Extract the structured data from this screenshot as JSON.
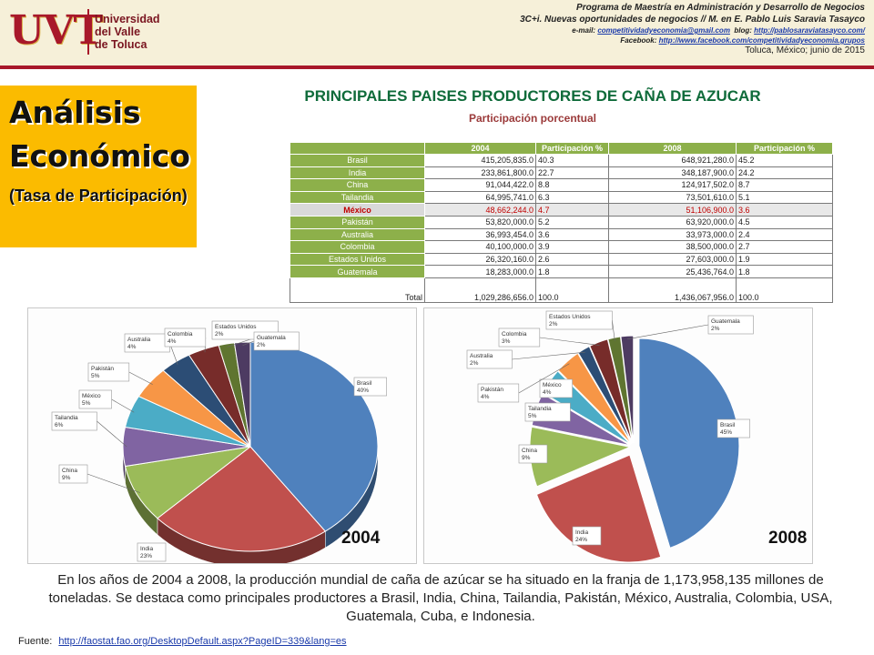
{
  "header": {
    "logo_mark": "UVT",
    "logo_lines": [
      "Universidad",
      "del Valle",
      "de Toluca"
    ],
    "program": "Programa de Maestría en Administración y Desarrollo de Negocios",
    "course": "3C+i. Nuevas oportunidades  de negocios // M. en E. Pablo Luis Saravia Tasayco",
    "email_label": "e-mail:",
    "email": "competitividadyeconomia@gmail.com",
    "blog_label": "blog:",
    "blog": "http://pablosaraviatasayco.com/",
    "facebook_label": "Facebook:",
    "facebook": "http://www.facebook.com/competitividadyeconomia.grupos",
    "place_date": "Toluca, México; junio de 2015"
  },
  "title_box": {
    "line1": "Análisis",
    "line2": "Económico",
    "subtitle": "(Tasa de Participación)"
  },
  "main_title": "PRINCIPALES PAISES PRODUCTORES DE CAÑA DE AZUCAR",
  "main_subtitle": "Participación porcentual",
  "table": {
    "headers": [
      "",
      "2004",
      "Participación %",
      "2008",
      "Participación %"
    ],
    "rows": [
      [
        "Brasil",
        "415,205,835.0",
        "40.3",
        "648,921,280.0",
        "45.2"
      ],
      [
        "India",
        "233,861,800.0",
        "22.7",
        "348,187,900.0",
        "24.2"
      ],
      [
        "China",
        "91,044,422.0",
        "8.8",
        "124,917,502.0",
        "8.7"
      ],
      [
        "Tailandia",
        "64,995,741.0",
        "6.3",
        "73,501,610.0",
        "5.1"
      ],
      [
        "México",
        "48,662,244.0",
        "4.7",
        "51,106,900.0",
        "3.6"
      ],
      [
        "Pakistán",
        "53,820,000.0",
        "5.2",
        "63,920,000.0",
        "4.5"
      ],
      [
        "Australia",
        "36,993,454.0",
        "3.6",
        "33,973,000.0",
        "2.4"
      ],
      [
        "Colombia",
        "40,100,000.0",
        "3.9",
        "38,500,000.0",
        "2.7"
      ],
      [
        "Estados Unidos",
        "26,320,160.0",
        "2.6",
        "27,603,000.0",
        "1.9"
      ],
      [
        "Guatemala",
        "18,283,000.0",
        "1.8",
        "25,436,764.0",
        "1.8"
      ]
    ],
    "total": [
      "Total",
      "1,029,286,656.0",
      "100.0",
      "1,436,067,956.0",
      "100.0"
    ],
    "highlight_row": "México"
  },
  "chart_data": [
    {
      "type": "pie",
      "year_label": "2004",
      "slices": [
        {
          "label": "Brasil",
          "value": 40,
          "color": "#4f81bd"
        },
        {
          "label": "India",
          "value": 23,
          "color": "#c0504d"
        },
        {
          "label": "China",
          "value": 9,
          "color": "#9bbb59"
        },
        {
          "label": "Tailandia",
          "value": 6,
          "color": "#8064a2"
        },
        {
          "label": "México",
          "value": 5,
          "color": "#4bacc6"
        },
        {
          "label": "Pakistán",
          "value": 5,
          "color": "#f79646"
        },
        {
          "label": "Australia",
          "value": 4,
          "color": "#2c4d75"
        },
        {
          "label": "Colombia",
          "value": 4,
          "color": "#772c2a"
        },
        {
          "label": "Estados Unidos",
          "value": 2,
          "color": "#5f7530"
        },
        {
          "label": "Guatemala",
          "value": 2,
          "color": "#4d3b62"
        }
      ]
    },
    {
      "type": "pie",
      "year_label": "2008",
      "slices": [
        {
          "label": "Brasil",
          "value": 45,
          "color": "#4f81bd"
        },
        {
          "label": "India",
          "value": 24,
          "color": "#c0504d"
        },
        {
          "label": "China",
          "value": 9,
          "color": "#9bbb59"
        },
        {
          "label": "Tailandia",
          "value": 5,
          "color": "#8064a2"
        },
        {
          "label": "México",
          "value": 4,
          "color": "#4bacc6"
        },
        {
          "label": "Pakistán",
          "value": 4,
          "color": "#f79646"
        },
        {
          "label": "Australia",
          "value": 2,
          "color": "#2c4d75"
        },
        {
          "label": "Colombia",
          "value": 3,
          "color": "#772c2a"
        },
        {
          "label": "Estados Unidos",
          "value": 2,
          "color": "#5f7530"
        },
        {
          "label": "Guatemala",
          "value": 2,
          "color": "#4d3b62"
        }
      ]
    }
  ],
  "summary": "En los años de 2004 a 2008, la producción mundial de caña de azúcar se ha situado en la franja de 1,173,958,135 millones de toneladas. Se destaca como principales productores a Brasil, India, China, Tailandia, Pakistán, México, Australia, Colombia, USA, Guatemala, Cuba, e Indonesia.",
  "source": {
    "label": "Fuente:",
    "url": "http://faostat.fao.org/DesktopDefault.aspx?PageID=339&lang=es"
  }
}
